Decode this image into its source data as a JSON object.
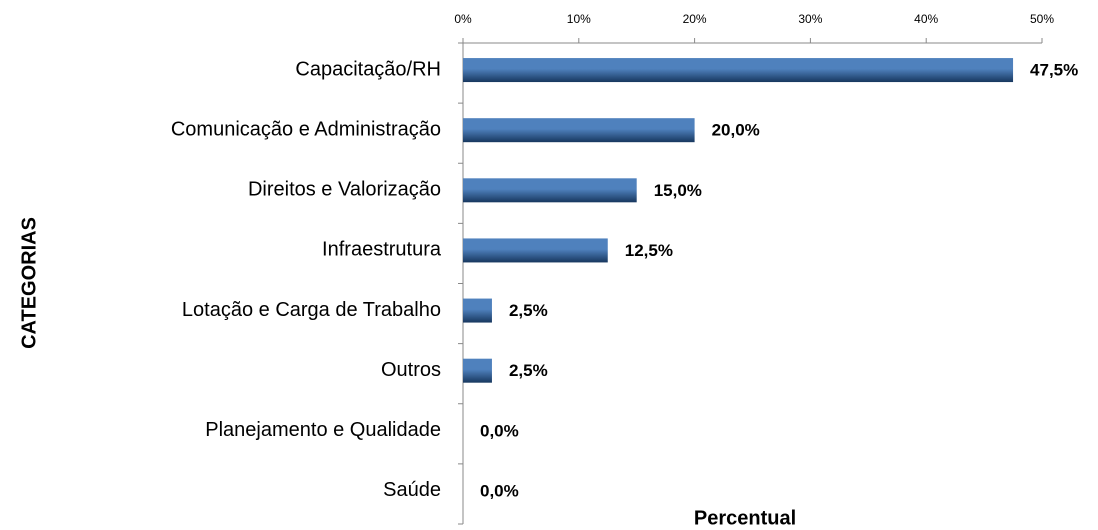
{
  "chart_data": {
    "type": "bar",
    "orientation": "horizontal",
    "x_label": "Percentual",
    "y_label": "CATEGORIAS",
    "categories": [
      "Capacitação/RH",
      "Comunicação e Administração",
      "Direitos e Valorização",
      "Infraestrutura",
      "Lotação e Carga de Trabalho",
      "Outros",
      "Planejamento e Qualidade",
      "Saúde"
    ],
    "values": [
      47.5,
      20.0,
      15.0,
      12.5,
      2.5,
      2.5,
      0.0,
      0.0
    ],
    "value_labels": [
      "47,5%",
      "20,0%",
      "15,0%",
      "12,5%",
      "2,5%",
      "2,5%",
      "0,0%",
      "0,0%"
    ],
    "color": "#4f81bd",
    "xlim": [
      0,
      50
    ],
    "xticks": [
      {
        "value": 0,
        "label": "0%"
      },
      {
        "value": 10,
        "label": "10%"
      },
      {
        "value": 20,
        "label": "20%"
      },
      {
        "value": 30,
        "label": "30%"
      },
      {
        "value": 40,
        "label": "40%"
      },
      {
        "value": 50,
        "label": "50%"
      }
    ],
    "grid": false
  }
}
